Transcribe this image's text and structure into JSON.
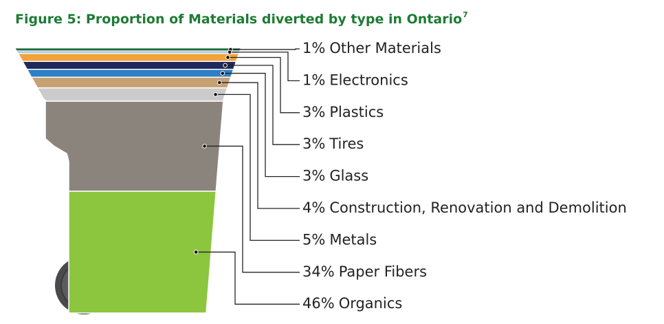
{
  "chart_data": {
    "type": "bin-stack",
    "title": "Figure 5: Proportion of Materials diverted by type in Ontario",
    "title_footnote": "7",
    "categories": [
      "Other Materials",
      "Electronics",
      "Plastics",
      "Tires",
      "Glass",
      "Construction, Renovation and Demolition",
      "Metals",
      "Paper Fibers",
      "Organics"
    ],
    "values": [
      1,
      1,
      3,
      3,
      3,
      4,
      5,
      34,
      46
    ],
    "value_labels": [
      "1%",
      "1%",
      "3%",
      "3%",
      "3%",
      "4%",
      "5%",
      "34%",
      "46%"
    ],
    "colors": [
      "#1f6b3a",
      "#a9cde4",
      "#f2a33a",
      "#1f2a5c",
      "#2f7fc4",
      "#c8a173",
      "#cbcbcb",
      "#8a847d",
      "#8cc63f"
    ]
  }
}
